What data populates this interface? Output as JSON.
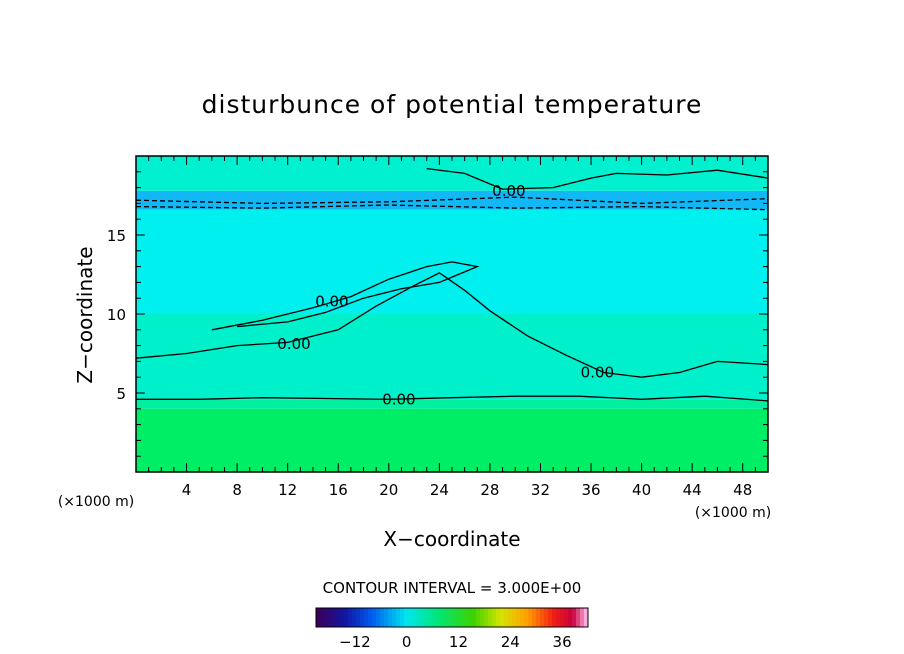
{
  "chart_data": {
    "type": "contour",
    "title": "disturbunce of potential temperature",
    "xlabel": "X−coordinate",
    "ylabel": "Z−coordinate",
    "x_unit": "(×1000 m)",
    "y_unit": "(×1000 m)",
    "xlim": [
      0,
      50
    ],
    "ylim": [
      0,
      20
    ],
    "x_ticks": [
      4,
      8,
      12,
      16,
      20,
      24,
      28,
      32,
      36,
      40,
      44,
      48
    ],
    "y_ticks": [
      5,
      10,
      15
    ],
    "contour_interval_text": "CONTOUR INTERVAL = 3.000E+00",
    "contour_level_label": "0.00",
    "colorbar": {
      "ticks": [
        -12,
        0,
        12,
        24,
        36
      ],
      "tick_labels": [
        "−12",
        "0",
        "12",
        "24",
        "36"
      ],
      "vmin": -21,
      "vmax": 42
    },
    "zero_contour_heights": [
      {
        "label": "0.00",
        "x": 20.8,
        "z": 4.6
      },
      {
        "label": "0.00",
        "x": 12.5,
        "z": 8.1
      },
      {
        "label": "0.00",
        "x": 15.5,
        "z": 10.8
      },
      {
        "label": "0.00",
        "x": 36.5,
        "z": 6.3
      },
      {
        "label": "0.00",
        "x": 29.5,
        "z": 17.8
      }
    ],
    "bands": [
      {
        "z0": 0,
        "z1": 4.0,
        "value": 4,
        "color": "#00ee66"
      },
      {
        "z0": 4.0,
        "z1": 4.6,
        "value": 2,
        "color": "#00f0a0"
      },
      {
        "z0": 4.6,
        "z1": 10,
        "value": 0,
        "color": "#00f0cc"
      },
      {
        "z0": 10,
        "z1": 16.6,
        "value": -1,
        "color": "#00f0f0"
      },
      {
        "z0": 16.6,
        "z1": 17.8,
        "value": -4,
        "color": "#11b8f5"
      },
      {
        "z0": 17.8,
        "z1": 20,
        "value": 0,
        "color": "#00f0d0"
      }
    ]
  }
}
